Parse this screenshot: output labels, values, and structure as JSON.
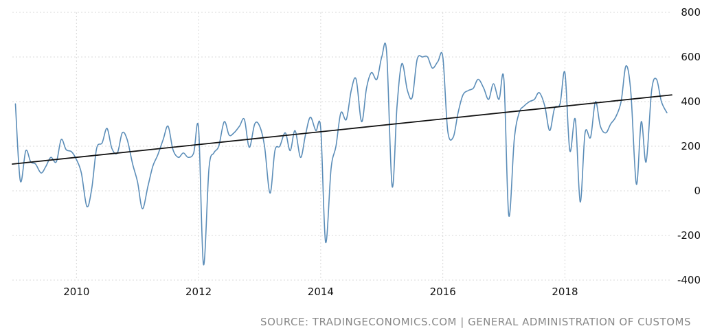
{
  "chart_data": {
    "type": "line",
    "xlim": [
      2008.95,
      2019.75
    ],
    "ylim": [
      -400,
      800
    ],
    "x_ticks": [
      2010,
      2012,
      2014,
      2016,
      2018
    ],
    "x_tick_labels": [
      "2010",
      "2012",
      "2014",
      "2016",
      "2018"
    ],
    "y_ticks": [
      800,
      600,
      400,
      200,
      0,
      -200,
      -400
    ],
    "y_tick_labels": [
      "800",
      "600",
      "400",
      "200",
      "0",
      "-200",
      "-400"
    ],
    "grid": true,
    "series": [
      {
        "type": "line",
        "color": "#5b8db8",
        "x": [
          2009.0,
          2009.08,
          2009.17,
          2009.25,
          2009.33,
          2009.42,
          2009.5,
          2009.58,
          2009.67,
          2009.75,
          2009.83,
          2009.92,
          2010.0,
          2010.08,
          2010.17,
          2010.25,
          2010.33,
          2010.42,
          2010.5,
          2010.58,
          2010.67,
          2010.75,
          2010.83,
          2010.92,
          2011.0,
          2011.08,
          2011.17,
          2011.25,
          2011.33,
          2011.42,
          2011.5,
          2011.58,
          2011.67,
          2011.75,
          2011.83,
          2011.92,
          2012.0,
          2012.08,
          2012.17,
          2012.25,
          2012.33,
          2012.42,
          2012.5,
          2012.58,
          2012.67,
          2012.75,
          2012.83,
          2012.92,
          2013.0,
          2013.08,
          2013.17,
          2013.25,
          2013.33,
          2013.42,
          2013.5,
          2013.58,
          2013.67,
          2013.75,
          2013.83,
          2013.92,
          2014.0,
          2014.08,
          2014.17,
          2014.25,
          2014.33,
          2014.42,
          2014.5,
          2014.58,
          2014.67,
          2014.75,
          2014.83,
          2014.92,
          2015.0,
          2015.08,
          2015.17,
          2015.25,
          2015.33,
          2015.42,
          2015.5,
          2015.58,
          2015.67,
          2015.75,
          2015.83,
          2015.92,
          2016.0,
          2016.08,
          2016.17,
          2016.25,
          2016.33,
          2016.42,
          2016.5,
          2016.58,
          2016.67,
          2016.75,
          2016.83,
          2016.92,
          2017.0,
          2017.08,
          2017.17,
          2017.25,
          2017.33,
          2017.42,
          2017.5,
          2017.58,
          2017.67,
          2017.75,
          2017.83,
          2017.92,
          2018.0,
          2018.08,
          2018.17,
          2018.25,
          2018.33,
          2018.42,
          2018.5,
          2018.58,
          2018.67,
          2018.75,
          2018.83,
          2018.92,
          2019.0,
          2019.08,
          2019.17,
          2019.25,
          2019.33,
          2019.42,
          2019.5,
          2019.58,
          2019.67
        ],
        "y": [
          390,
          45,
          180,
          130,
          120,
          80,
          110,
          150,
          130,
          230,
          185,
          175,
          140,
          80,
          -70,
          10,
          190,
          215,
          280,
          190,
          170,
          260,
          230,
          120,
          40,
          -80,
          20,
          110,
          160,
          230,
          290,
          185,
          150,
          170,
          150,
          170,
          280,
          -330,
          100,
          170,
          200,
          310,
          250,
          260,
          290,
          320,
          195,
          300,
          290,
          200,
          -10,
          180,
          200,
          260,
          180,
          270,
          150,
          250,
          330,
          270,
          280,
          -230,
          100,
          200,
          350,
          320,
          450,
          500,
          310,
          460,
          530,
          500,
          600,
          620,
          20,
          380,
          570,
          450,
          420,
          590,
          600,
          600,
          550,
          580,
          600,
          270,
          240,
          350,
          430,
          450,
          460,
          500,
          460,
          410,
          480,
          410,
          500,
          -110,
          230,
          350,
          380,
          400,
          410,
          440,
          380,
          270,
          370,
          390,
          530,
          180,
          320,
          -50,
          260,
          240,
          400,
          290,
          260,
          300,
          330,
          400,
          560,
          440,
          30,
          310,
          130,
          450,
          500,
          400,
          350
        ],
        "label": ""
      },
      {
        "type": "line",
        "color": "#111111",
        "x": [
          2008.95,
          2019.75
        ],
        "y": [
          120,
          430
        ],
        "label": ""
      }
    ],
    "annotations": [
      "SOURCE: TRADINGECONOMICS.COM | GENERAL ADMINISTRATION OF CUSTOMS"
    ]
  },
  "source_text": "SOURCE: TRADINGECONOMICS.COM | GENERAL ADMINISTRATION OF CUSTOMS"
}
